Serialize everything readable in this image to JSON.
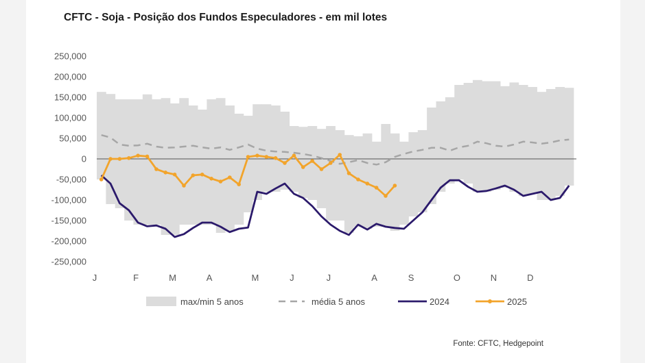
{
  "chart_data": {
    "type": "area",
    "title": "CFTC - Soja - Posição dos Fundos Especuladores - em mil lotes",
    "source": "Fonte: CFTC, Hedgepoint",
    "ylim": [
      -250000,
      250000
    ],
    "yticks": [
      250000,
      200000,
      150000,
      100000,
      50000,
      0,
      -50000,
      -100000,
      -150000,
      -200000,
      -250000
    ],
    "ytick_labels": [
      "250,000",
      "200,000",
      "150,000",
      "100,000",
      "50,000",
      "0",
      "-50,000",
      "-100,000",
      "-150,000",
      "-200,000",
      "-250,000"
    ],
    "xtick_labels": [
      "J",
      "F",
      "M",
      "A",
      "M",
      "J",
      "J",
      "A",
      "S",
      "O",
      "N",
      "D"
    ],
    "xtick_weeks": [
      0,
      4.5,
      8.5,
      12.5,
      17.5,
      21.5,
      25.5,
      30.5,
      34.5,
      39.5,
      43.5,
      47.5
    ],
    "weeks": 52,
    "legend": [
      "max/min 5 anos",
      "média 5 anos",
      "2024",
      "2025"
    ],
    "legend_placement": "bottom",
    "colors": {
      "band": "#dcdcdc",
      "media": "#a6a6a6",
      "y2024": "#2b1a6b",
      "y2025": "#f2a42b",
      "zero": "#555555"
    },
    "series": [
      {
        "name": "max/min 5 anos",
        "kind": "band-bars",
        "max": [
          163000,
          158000,
          145000,
          145000,
          145000,
          157000,
          145000,
          148000,
          135000,
          148000,
          130000,
          120000,
          145000,
          148000,
          130000,
          110000,
          105000,
          133000,
          133000,
          130000,
          115000,
          80000,
          78000,
          80000,
          73000,
          80000,
          70000,
          58000,
          55000,
          62000,
          42000,
          85000,
          62000,
          42000,
          65000,
          70000,
          125000,
          140000,
          150000,
          180000,
          185000,
          192000,
          189000,
          189000,
          177000,
          186000,
          180000,
          175000,
          163000,
          170000,
          175000,
          173000
        ],
        "min": [
          -50000,
          -110000,
          -120000,
          -150000,
          -160000,
          -160000,
          -160000,
          -185000,
          -185000,
          -160000,
          -160000,
          -160000,
          -160000,
          -180000,
          -175000,
          -160000,
          -130000,
          -100000,
          -80000,
          -80000,
          -75000,
          -80000,
          -95000,
          -100000,
          -120000,
          -150000,
          -150000,
          -180000,
          -165000,
          -170000,
          -165000,
          -165000,
          -175000,
          -160000,
          -140000,
          -130000,
          -110000,
          -80000,
          -60000,
          -50000,
          -60000,
          -80000,
          -80000,
          -75000,
          -70000,
          -80000,
          -90000,
          -85000,
          -100000,
          -100000,
          -90000,
          -65000
        ]
      },
      {
        "name": "média 5 anos",
        "values": [
          58000,
          52000,
          35000,
          32000,
          33000,
          37000,
          30000,
          27000,
          28000,
          30000,
          32000,
          28000,
          25000,
          28000,
          22000,
          28000,
          35000,
          25000,
          20000,
          18000,
          17000,
          15000,
          12000,
          8000,
          2000,
          -5000,
          -12000,
          -8000,
          -3000,
          -10000,
          -14000,
          -8000,
          5000,
          12000,
          18000,
          22000,
          27000,
          27000,
          20000,
          28000,
          32000,
          42000,
          38000,
          32000,
          30000,
          35000,
          42000,
          40000,
          37000,
          40000,
          45000,
          47000
        ]
      },
      {
        "name": "2024",
        "values": [
          -40000,
          -60000,
          -108000,
          -125000,
          -155000,
          -164000,
          -162000,
          -170000,
          -190000,
          -183000,
          -168000,
          -155000,
          -155000,
          -165000,
          -178000,
          -170000,
          -167000,
          -80000,
          -85000,
          -72000,
          -60000,
          -85000,
          -95000,
          -115000,
          -140000,
          -160000,
          -175000,
          -185000,
          -160000,
          -172000,
          -158000,
          -165000,
          -168000,
          -170000,
          -150000,
          -130000,
          -100000,
          -70000,
          -52000,
          -52000,
          -68000,
          -80000,
          -78000,
          -72000,
          -65000,
          -75000,
          -90000,
          -85000,
          -80000,
          -100000,
          -95000,
          -65000
        ]
      },
      {
        "name": "2025",
        "values": [
          -50000,
          0,
          0,
          2000,
          8000,
          6000,
          -25000,
          -33000,
          -38000,
          -65000,
          -40000,
          -38000,
          -48000,
          -55000,
          -45000,
          -62000,
          5000,
          8000,
          5000,
          2000,
          -10000,
          8000,
          -20000,
          -5000,
          -25000,
          -10000,
          10000,
          -35000,
          -50000,
          -60000,
          -70000,
          -90000,
          -65000
        ]
      }
    ]
  }
}
